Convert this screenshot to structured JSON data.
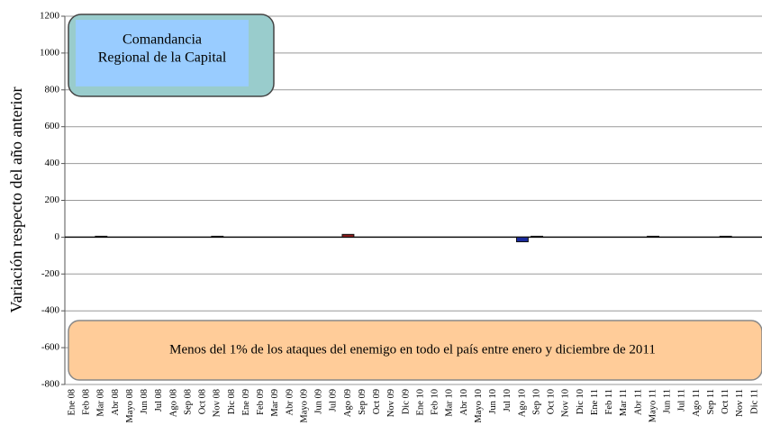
{
  "chart_data": {
    "type": "bar",
    "title": [
      "Comandancia",
      "Regional de la Capital"
    ],
    "annotation": "Menos del 1% de los ataques del enemigo en todo el país entre enero y diciembre de 2011",
    "y_label": "Variación respecto del año anterior",
    "categories": [
      "Ene 08",
      "Feb 08",
      "Mar 08",
      "Abr 08",
      "Mayo 08",
      "Jun 08",
      "Jul 08",
      "Ago 08",
      "Sep 08",
      "Oct 08",
      "Nov 08",
      "Dic 08",
      "Ene 09",
      "Feb 09",
      "Mar 09",
      "Abr 09",
      "Mayo 09",
      "Jun 09",
      "Jul 09",
      "Ago 09",
      "Sep 09",
      "Oct 09",
      "Nov 09",
      "Dic 09",
      "Ene 10",
      "Feb 10",
      "Mar 10",
      "Abr 10",
      "Mayo 10",
      "Jun 10",
      "Jul 10",
      "Ago 10",
      "Sep 10",
      "Oct 10",
      "Nov 10",
      "Dic 10",
      "Ene 11",
      "Feb 11",
      "Mar 11",
      "Abr 11",
      "Mayo 11",
      "Jun 11",
      "Jul 11",
      "Ago 11",
      "Sep 11",
      "Oct 11",
      "Nov 11",
      "Dic 11"
    ],
    "values": [
      0,
      0,
      5,
      0,
      0,
      0,
      0,
      0,
      0,
      0,
      5,
      0,
      0,
      0,
      0,
      0,
      0,
      0,
      0,
      15,
      0,
      0,
      0,
      0,
      0,
      0,
      0,
      0,
      0,
      0,
      0,
      -25,
      5,
      0,
      0,
      0,
      0,
      0,
      0,
      0,
      5,
      0,
      0,
      0,
      0,
      5,
      0,
      0
    ],
    "colors": [
      "#222",
      "#222",
      "#222",
      "#222",
      "#222",
      "#222",
      "#222",
      "#222",
      "#222",
      "#222",
      "#222",
      "#222",
      "#222",
      "#222",
      "#222",
      "#222",
      "#222",
      "#222",
      "#222",
      "#8b1a1a",
      "#222",
      "#222",
      "#222",
      "#222",
      "#222",
      "#222",
      "#222",
      "#222",
      "#222",
      "#222",
      "#222",
      "#1a2a9b",
      "#222",
      "#222",
      "#222",
      "#222",
      "#222",
      "#222",
      "#222",
      "#222",
      "#222",
      "#222",
      "#222",
      "#222",
      "#222",
      "#222",
      "#222",
      "#222"
    ],
    "ylim": [
      -800,
      1200
    ],
    "yticks": [
      -800,
      -600,
      -400,
      -200,
      0,
      200,
      400,
      600,
      800,
      1000,
      1200
    ],
    "grid": true
  }
}
